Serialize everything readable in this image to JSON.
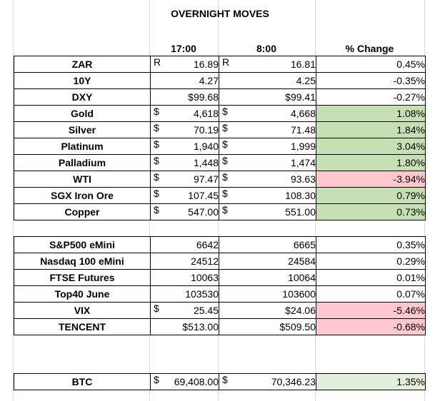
{
  "title": "OVERNIGHT MOVES",
  "columns": [
    "17:00",
    "8:00",
    "% Change"
  ],
  "colors": {
    "positive": "#c6e0b4",
    "negative": "#ffc7ce",
    "positive_light": "#e2efda"
  },
  "tables": [
    {
      "rows": [
        {
          "name": "ZAR",
          "p1": "R",
          "v1": "16.89",
          "p2": "R",
          "v2": "16.81",
          "chg": "0.45%",
          "hl": ""
        },
        {
          "name": "10Y",
          "p1": "",
          "v1": "4.27",
          "p2": "",
          "v2": "4.25",
          "chg": "-0.35%",
          "hl": ""
        },
        {
          "name": "DXY",
          "p1": "",
          "v1": "$99.68",
          "p2": "",
          "v2": "$99.41",
          "chg": "-0.27%",
          "hl": ""
        },
        {
          "name": "Gold",
          "p1": "$",
          "v1": "4,618",
          "p2": "$",
          "v2": "4,668",
          "chg": "1.08%",
          "hl": "pos"
        },
        {
          "name": "Silver",
          "p1": "$",
          "v1": "70.19",
          "p2": "$",
          "v2": "71.48",
          "chg": "1.84%",
          "hl": "pos"
        },
        {
          "name": "Platinum",
          "p1": "$",
          "v1": "1,940",
          "p2": "$",
          "v2": "1,999",
          "chg": "3.04%",
          "hl": "pos"
        },
        {
          "name": "Palladium",
          "p1": "$",
          "v1": "1,448",
          "p2": "$",
          "v2": "1,474",
          "chg": "1.80%",
          "hl": "pos"
        },
        {
          "name": "WTI",
          "p1": "$",
          "v1": "97.47",
          "p2": "$",
          "v2": "93.63",
          "chg": "-3.94%",
          "hl": "neg"
        },
        {
          "name": "SGX Iron Ore",
          "p1": "$",
          "v1": "107.45",
          "p2": "$",
          "v2": "108.30",
          "chg": "0.79%",
          "hl": "pos"
        },
        {
          "name": "Copper",
          "p1": "$",
          "v1": "547.00",
          "p2": "$",
          "v2": "551.00",
          "chg": "0.73%",
          "hl": "pos"
        }
      ]
    },
    {
      "rows": [
        {
          "name": "S&P500 eMini",
          "p1": "",
          "v1": "6642",
          "p2": "",
          "v2": "6665",
          "chg": "0.35%",
          "hl": ""
        },
        {
          "name": "Nasdaq 100 eMini",
          "p1": "",
          "v1": "24512",
          "p2": "",
          "v2": "24584",
          "chg": "0.29%",
          "hl": ""
        },
        {
          "name": "FTSE Futures",
          "p1": "",
          "v1": "10063",
          "p2": "",
          "v2": "10064",
          "chg": "0.01%",
          "hl": ""
        },
        {
          "name": "Top40 June",
          "p1": "",
          "v1": "103530",
          "p2": "",
          "v2": "103600",
          "chg": "0.07%",
          "hl": ""
        },
        {
          "name": "VIX",
          "p1": "$",
          "v1": "25.45",
          "p2": "",
          "v2": "$24.06",
          "chg": "-5.46%",
          "hl": "neg"
        },
        {
          "name": "TENCENT",
          "p1": "",
          "v1": "$513.00",
          "p2": "",
          "v2": "$509.50",
          "chg": "-0.68%",
          "hl": "neg"
        }
      ]
    },
    {
      "rows": [
        {
          "name": "BTC",
          "p1": "$",
          "v1": "69,408.00",
          "p2": "$",
          "v2": "70,346.23",
          "chg": "1.35%",
          "hl": "pos btcpos"
        }
      ]
    }
  ]
}
